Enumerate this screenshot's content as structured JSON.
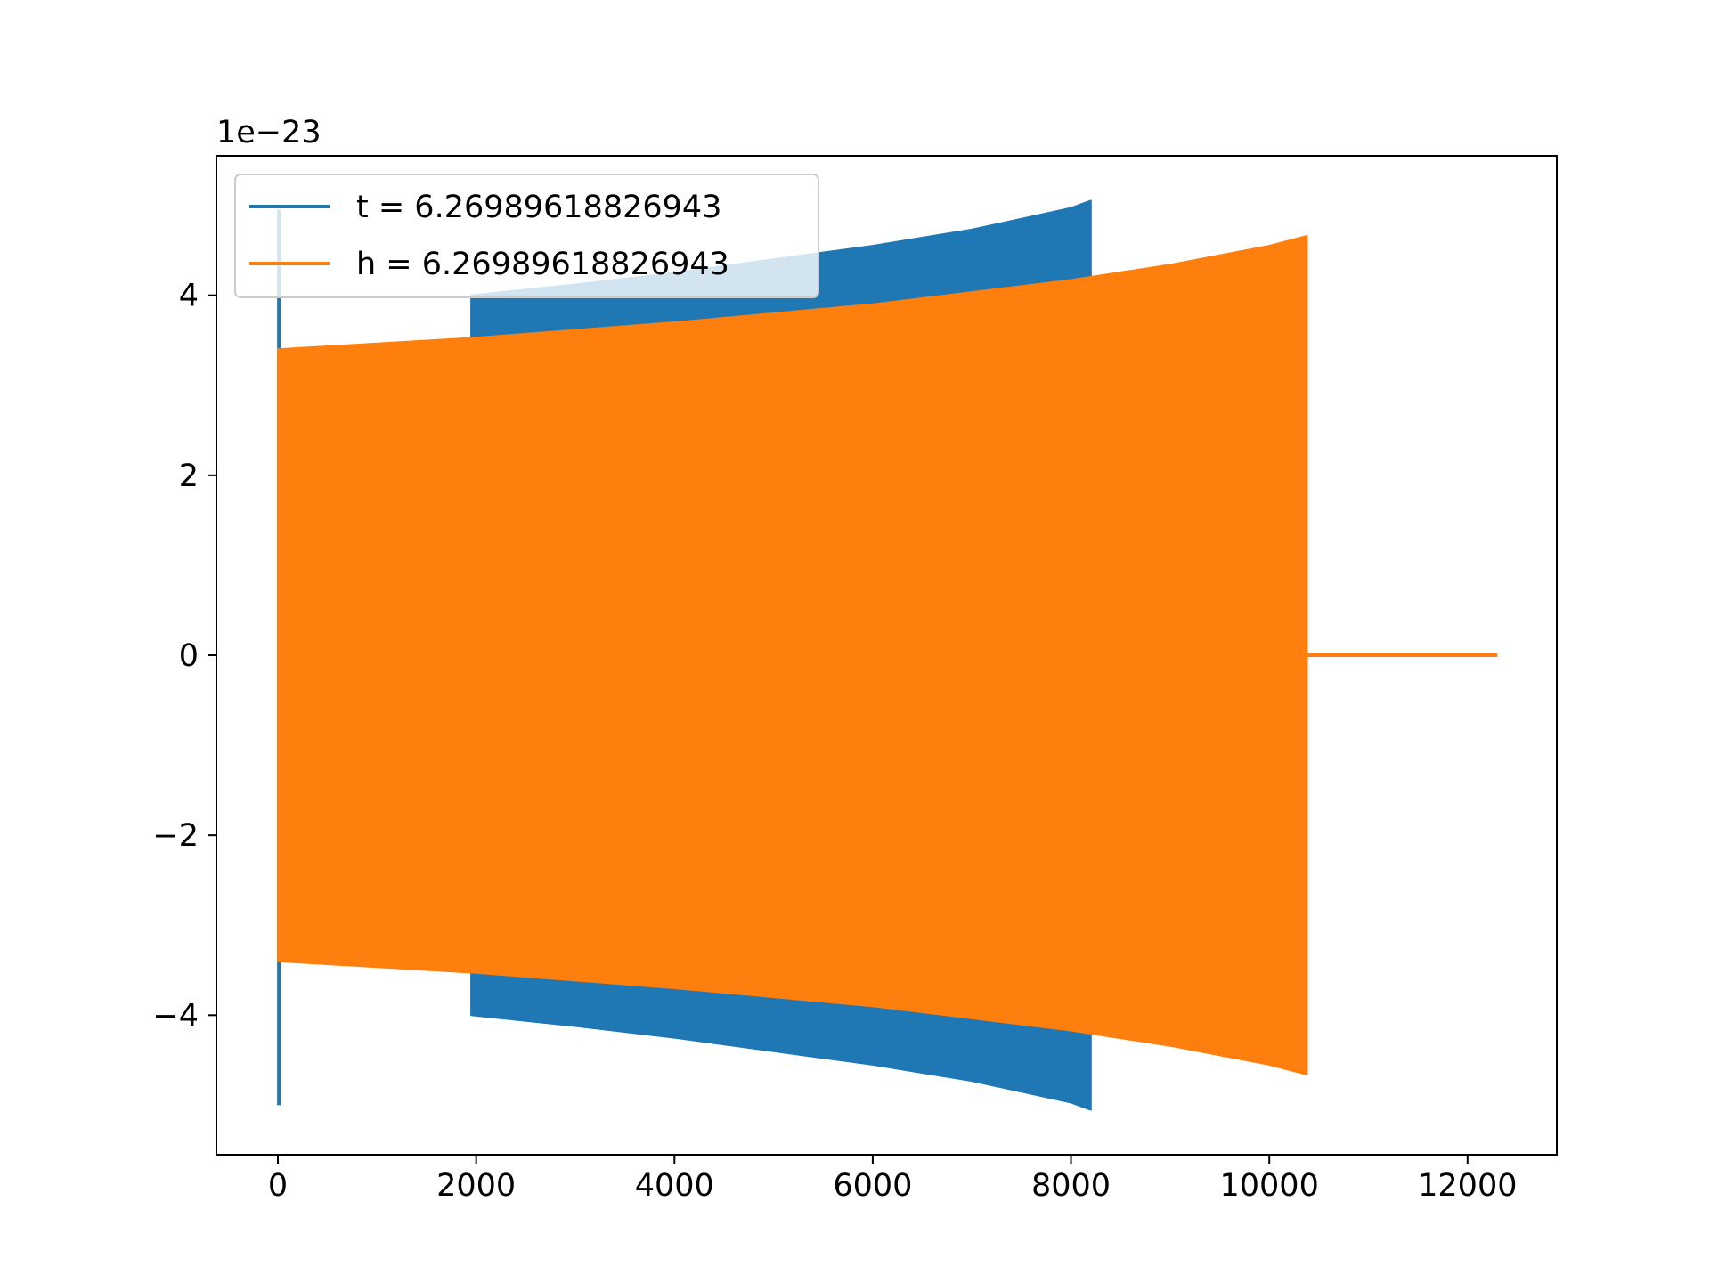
{
  "chart_data": {
    "type": "line",
    "title": "",
    "xlabel": "",
    "ylabel": "",
    "y_offset_text": "1e−23",
    "xlim": [
      -620,
      12900
    ],
    "ylim": [
      -5.55,
      5.55
    ],
    "x_ticks": [
      {
        "value": 0,
        "label": "0"
      },
      {
        "value": 2000,
        "label": "2000"
      },
      {
        "value": 4000,
        "label": "4000"
      },
      {
        "value": 6000,
        "label": "6000"
      },
      {
        "value": 8000,
        "label": "8000"
      },
      {
        "value": 10000,
        "label": "10000"
      },
      {
        "value": 12000,
        "label": "12000"
      }
    ],
    "y_ticks": [
      {
        "value": -4,
        "label": "−4"
      },
      {
        "value": -2,
        "label": "−2"
      },
      {
        "value": 0,
        "label": "0"
      },
      {
        "value": 2,
        "label": "2"
      },
      {
        "value": 4,
        "label": "4"
      }
    ],
    "grid": false,
    "legend_position": "upper-left",
    "series": [
      {
        "name": "t = 6.26989618826943",
        "color": "#1f77b4",
        "spike": {
          "x": 10,
          "ymin": -5.0,
          "ymax": 4.95
        },
        "envelope_x": [
          1950,
          3000,
          4000,
          5000,
          6000,
          7000,
          8000,
          8200
        ],
        "envelope_upper": [
          4.0,
          4.12,
          4.25,
          4.4,
          4.55,
          4.73,
          4.97,
          5.05
        ],
        "envelope_lower": [
          -4.0,
          -4.12,
          -4.25,
          -4.4,
          -4.55,
          -4.73,
          -4.97,
          -5.05
        ]
      },
      {
        "name": "h = 6.26989618826943",
        "color": "#ff7f0e",
        "envelope_x": [
          0,
          2000,
          4000,
          6000,
          8000,
          9000,
          10000,
          10380
        ],
        "envelope_upper": [
          3.4,
          3.53,
          3.7,
          3.9,
          4.17,
          4.34,
          4.55,
          4.66
        ],
        "envelope_lower": [
          -3.4,
          -3.53,
          -3.7,
          -3.9,
          -4.17,
          -4.34,
          -4.55,
          -4.66
        ],
        "tail": {
          "x_start": 10380,
          "x_end": 12300,
          "y": 0
        }
      }
    ]
  }
}
